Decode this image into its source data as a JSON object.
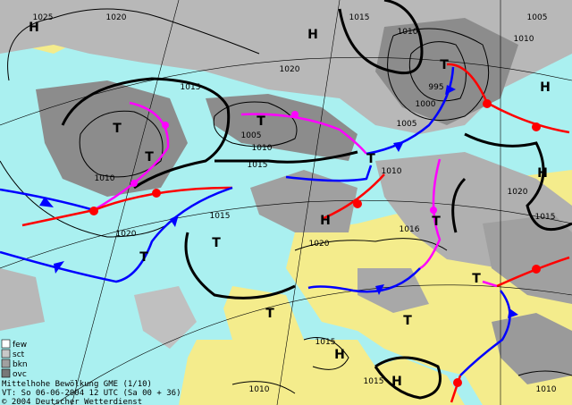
{
  "map": {
    "isobar_labels": [
      1025,
      1020,
      1015,
      1010,
      1005,
      1010,
      1020,
      1015,
      995,
      1000,
      1005,
      1005,
      1010,
      1015,
      1010,
      1010,
      1020,
      1015,
      1015,
      1016,
      1020,
      1020,
      1015,
      1015,
      1010,
      1010
    ],
    "centers": [
      "H",
      "H",
      "T",
      "H",
      "T",
      "T",
      "T",
      "T",
      "H",
      "H",
      "T",
      "T",
      "T",
      "T",
      "T",
      "T",
      "H",
      "H"
    ],
    "legend": [
      "few",
      "sct",
      "bkn",
      "ovc"
    ],
    "footer": [
      "Mittelhohe Bewölkung GME (1/10)",
      "VT: So 06-06-2004 12 UTC (Sa 00 + 36)",
      "© 2004 Deutscher Wetterdienst"
    ]
  }
}
